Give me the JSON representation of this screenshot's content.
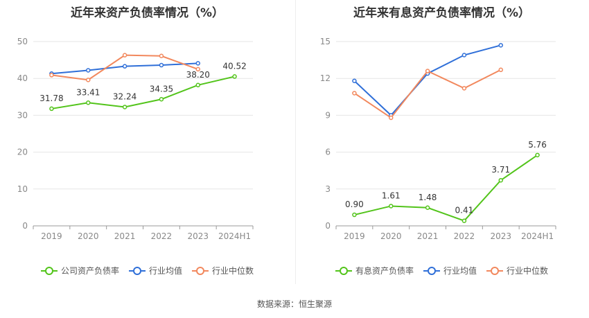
{
  "footer": {
    "source": "数据来源：恒生聚源"
  },
  "chart_data": [
    {
      "type": "line",
      "title": "近年来资产负债率情况（%）",
      "categories": [
        "2019",
        "2020",
        "2021",
        "2022",
        "2023",
        "2024H1"
      ],
      "ylim": [
        0,
        50
      ],
      "yticks": [
        0,
        10,
        20,
        30,
        40,
        50
      ],
      "grid": true,
      "legend_position": "bottom",
      "series": [
        {
          "name": "公司资产负债率",
          "color": "#52c41a",
          "values": [
            31.78,
            33.41,
            32.24,
            34.35,
            38.2,
            40.52
          ],
          "labels": [
            "31.78",
            "33.41",
            "32.24",
            "34.35",
            "38.20",
            "40.52"
          ]
        },
        {
          "name": "行业均值",
          "color": "#2f6fd8",
          "values": [
            41.3,
            42.2,
            43.3,
            43.6,
            44.1,
            null
          ]
        },
        {
          "name": "行业中位数",
          "color": "#f2885d",
          "values": [
            40.9,
            39.6,
            46.3,
            46.1,
            42.5,
            null
          ]
        }
      ]
    },
    {
      "type": "line",
      "title": "近年来有息资产负债率情况（%）",
      "categories": [
        "2019",
        "2020",
        "2021",
        "2022",
        "2023",
        "2024H1"
      ],
      "ylim": [
        0,
        15
      ],
      "yticks": [
        0,
        3,
        6,
        9,
        12,
        15
      ],
      "grid": true,
      "legend_position": "bottom",
      "series": [
        {
          "name": "有息资产负债率",
          "color": "#52c41a",
          "values": [
            0.9,
            1.61,
            1.48,
            0.41,
            3.71,
            5.76
          ],
          "labels": [
            "0.90",
            "1.61",
            "1.48",
            "0.41",
            "3.71",
            "5.76"
          ]
        },
        {
          "name": "行业均值",
          "color": "#2f6fd8",
          "values": [
            11.8,
            9.0,
            12.4,
            13.9,
            14.7,
            null
          ]
        },
        {
          "name": "行业中位数",
          "color": "#f2885d",
          "values": [
            10.8,
            8.8,
            12.6,
            11.2,
            12.7,
            null
          ]
        }
      ]
    }
  ]
}
